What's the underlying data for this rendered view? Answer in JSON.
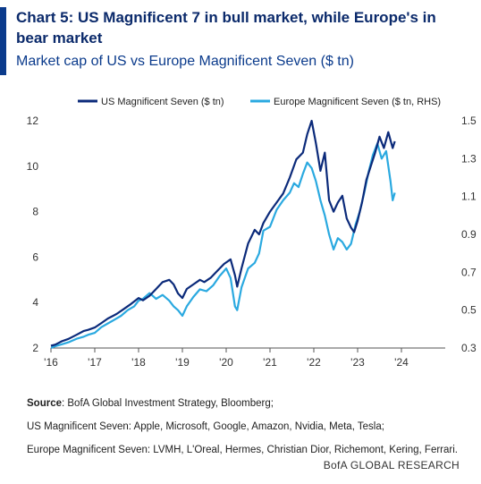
{
  "header": {
    "title": "Chart 5: US Magnificent 7 in bull market, while Europe's in bear market",
    "subtitle": "Market cap of US vs Europe Magnificent Seven ($ tn)"
  },
  "chart_data": {
    "type": "line",
    "title": "Chart 5: US Magnificent 7 in bull market, while Europe's in bear market",
    "subtitle": "Market cap of US vs Europe Magnificent Seven ($ tn)",
    "x_tick_labels": [
      "'16",
      "'17",
      "'18",
      "'19",
      "'20",
      "'21",
      "'22",
      "'23",
      "'24"
    ],
    "x_range": [
      2016.0,
      2025.0
    ],
    "left_axis": {
      "range": [
        2,
        12
      ],
      "ticks": [
        2,
        4,
        6,
        8,
        10,
        12
      ]
    },
    "right_axis": {
      "range": [
        0.3,
        1.5
      ],
      "ticks": [
        0.3,
        0.5,
        0.7,
        0.9,
        1.1,
        1.3,
        1.5
      ]
    },
    "grid": false,
    "legend_placement": "top",
    "series": [
      {
        "name": "US Magnificent Seven ($ tn)",
        "axis": "left",
        "color": "#0b2a7a",
        "x": [
          2016.0,
          2016.1,
          2016.25,
          2016.4,
          2016.5,
          2016.6,
          2016.75,
          2016.85,
          2017.0,
          2017.15,
          2017.3,
          2017.5,
          2017.65,
          2017.8,
          2018.0,
          2018.1,
          2018.25,
          2018.4,
          2018.55,
          2018.7,
          2018.8,
          2018.9,
          2019.0,
          2019.1,
          2019.25,
          2019.4,
          2019.5,
          2019.65,
          2019.8,
          2019.95,
          2020.1,
          2020.2,
          2020.25,
          2020.35,
          2020.5,
          2020.65,
          2020.75,
          2020.85,
          2021.0,
          2021.15,
          2021.3,
          2021.45,
          2021.6,
          2021.75,
          2021.85,
          2021.95,
          2022.05,
          2022.15,
          2022.25,
          2022.35,
          2022.45,
          2022.55,
          2022.65,
          2022.75,
          2022.85,
          2022.92,
          2023.0,
          2023.1,
          2023.2,
          2023.3,
          2023.4,
          2023.5,
          2023.6,
          2023.7,
          2023.8,
          2023.85
        ],
        "y": [
          2.1,
          2.15,
          2.3,
          2.4,
          2.5,
          2.6,
          2.75,
          2.8,
          2.9,
          3.1,
          3.3,
          3.5,
          3.7,
          3.9,
          4.2,
          4.1,
          4.3,
          4.6,
          4.9,
          5.0,
          4.8,
          4.4,
          4.2,
          4.6,
          4.8,
          5.0,
          4.9,
          5.1,
          5.4,
          5.7,
          5.9,
          5.2,
          4.7,
          5.5,
          6.6,
          7.2,
          7.0,
          7.5,
          8.0,
          8.4,
          8.8,
          9.5,
          10.3,
          10.6,
          11.4,
          12.0,
          11.0,
          9.8,
          10.6,
          8.5,
          8.0,
          8.4,
          8.7,
          7.7,
          7.3,
          7.1,
          7.6,
          8.4,
          9.4,
          10.0,
          10.6,
          11.3,
          10.8,
          11.5,
          10.8,
          11.1
        ]
      },
      {
        "name": "Europe Magnificent Seven ($ tn, RHS)",
        "axis": "right",
        "color": "#2aa9e0",
        "x": [
          2016.0,
          2016.1,
          2016.25,
          2016.4,
          2016.5,
          2016.6,
          2016.75,
          2016.85,
          2017.0,
          2017.15,
          2017.3,
          2017.45,
          2017.6,
          2017.75,
          2017.9,
          2018.0,
          2018.1,
          2018.25,
          2018.4,
          2018.55,
          2018.7,
          2018.8,
          2018.9,
          2019.0,
          2019.1,
          2019.25,
          2019.4,
          2019.55,
          2019.7,
          2019.85,
          2020.0,
          2020.1,
          2020.2,
          2020.25,
          2020.35,
          2020.5,
          2020.65,
          2020.75,
          2020.85,
          2021.0,
          2021.15,
          2021.3,
          2021.45,
          2021.55,
          2021.65,
          2021.75,
          2021.85,
          2021.95,
          2022.05,
          2022.15,
          2022.25,
          2022.35,
          2022.45,
          2022.55,
          2022.65,
          2022.75,
          2022.85,
          2022.95,
          2023.05,
          2023.15,
          2023.25,
          2023.35,
          2023.45,
          2023.55,
          2023.65,
          2023.75,
          2023.8,
          2023.85
        ],
        "y": [
          0.3,
          0.31,
          0.32,
          0.33,
          0.34,
          0.35,
          0.36,
          0.37,
          0.38,
          0.41,
          0.43,
          0.45,
          0.47,
          0.5,
          0.52,
          0.55,
          0.56,
          0.59,
          0.56,
          0.58,
          0.55,
          0.52,
          0.5,
          0.47,
          0.52,
          0.57,
          0.61,
          0.6,
          0.63,
          0.68,
          0.72,
          0.67,
          0.52,
          0.5,
          0.62,
          0.72,
          0.75,
          0.8,
          0.92,
          0.94,
          1.03,
          1.08,
          1.12,
          1.17,
          1.15,
          1.22,
          1.28,
          1.25,
          1.18,
          1.08,
          1.0,
          0.9,
          0.82,
          0.88,
          0.86,
          0.82,
          0.85,
          0.95,
          1.02,
          1.12,
          1.23,
          1.32,
          1.38,
          1.3,
          1.34,
          1.18,
          1.08,
          1.12
        ]
      }
    ]
  },
  "source": {
    "label": "Source",
    "text": ": BofA Global Investment Strategy, Bloomberg;",
    "us_members": "US Magnificent Seven: Apple, Microsoft, Google, Amazon, Nvidia, Meta, Tesla;",
    "eu_members": "Europe Magnificent Seven: LVMH, L'Oreal, Hermes, Christian Dior, Richemont, Kering, Ferrari."
  },
  "footer": {
    "brand": "BofA GLOBAL RESEARCH"
  }
}
